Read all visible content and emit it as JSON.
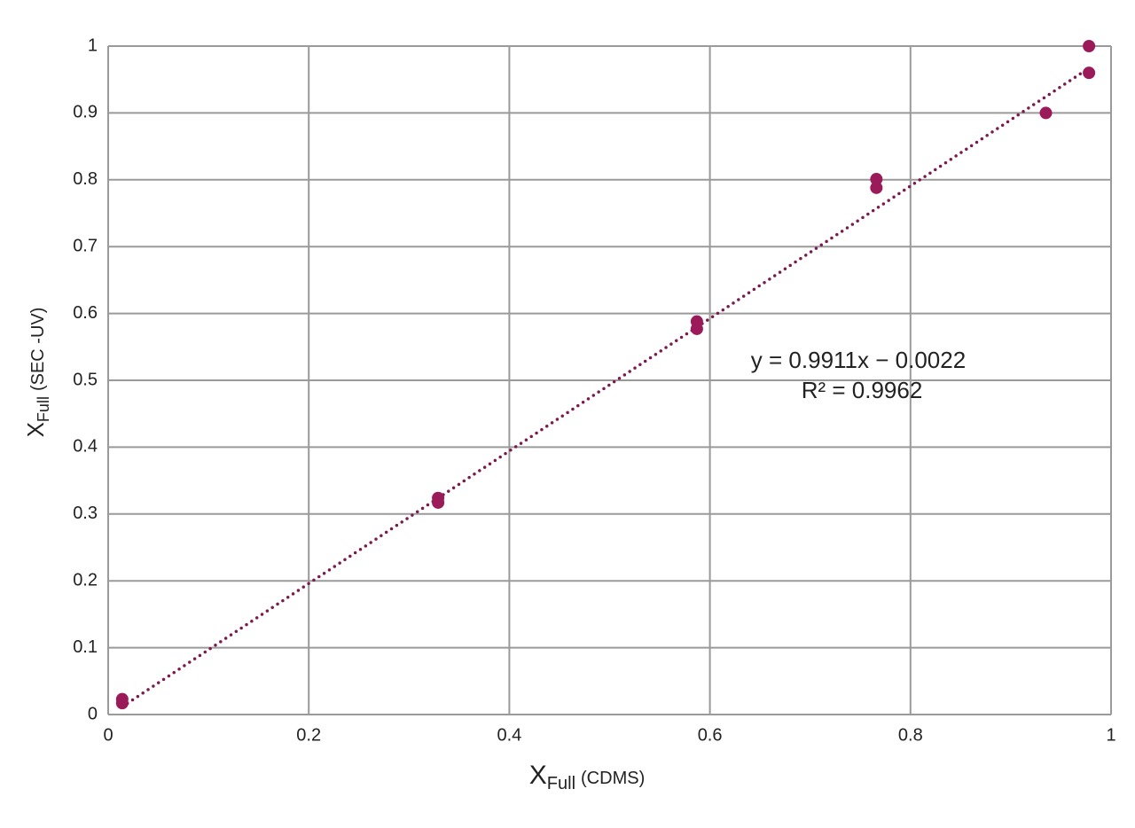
{
  "chart_data": {
    "type": "scatter",
    "x_label": {
      "main": "X",
      "sub": "Full",
      "suffix": "(CDMS)"
    },
    "y_label": {
      "main": "X",
      "sub": "Full",
      "suffix": "(SEC -UV)"
    },
    "x": [
      0.014,
      0.014,
      0.329,
      0.329,
      0.587,
      0.587,
      0.766,
      0.766,
      0.935,
      0.978,
      0.978
    ],
    "values": [
      0.023,
      0.017,
      0.324,
      0.317,
      0.588,
      0.577,
      0.801,
      0.788,
      0.9,
      1.0,
      0.96
    ],
    "color": "#9b1b5a",
    "trendline": {
      "slope": 0.9911,
      "intercept": -0.0022,
      "color": "#7a1a4e",
      "equation": "y = 0.9911x − 0.0022",
      "r2": "R² = 0.9962"
    },
    "xlim": [
      0,
      1
    ],
    "xticks": [
      0,
      0.2,
      0.4,
      0.6,
      0.8,
      1
    ],
    "ylim": [
      0,
      1
    ],
    "yticks": [
      0,
      0.1,
      0.2,
      0.3,
      0.4,
      0.5,
      0.6,
      0.7,
      0.8,
      0.9,
      1
    ],
    "grid": true
  }
}
